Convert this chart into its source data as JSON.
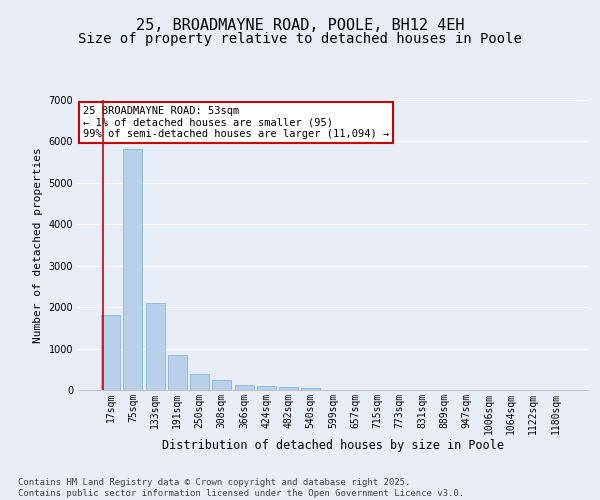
{
  "title": "25, BROADMAYNE ROAD, POOLE, BH12 4EH",
  "subtitle": "Size of property relative to detached houses in Poole",
  "xlabel": "Distribution of detached houses by size in Poole",
  "ylabel": "Number of detached properties",
  "categories": [
    "17sqm",
    "75sqm",
    "133sqm",
    "191sqm",
    "250sqm",
    "308sqm",
    "366sqm",
    "424sqm",
    "482sqm",
    "540sqm",
    "599sqm",
    "657sqm",
    "715sqm",
    "773sqm",
    "831sqm",
    "889sqm",
    "947sqm",
    "1006sqm",
    "1064sqm",
    "1122sqm",
    "1180sqm"
  ],
  "values": [
    1800,
    5820,
    2100,
    840,
    380,
    230,
    120,
    90,
    70,
    50,
    0,
    0,
    0,
    0,
    0,
    0,
    0,
    0,
    0,
    0,
    0
  ],
  "bar_color": "#b8d0ea",
  "bar_edge_color": "#7aafd4",
  "annotation_text": "25 BROADMAYNE ROAD: 53sqm\n← 1% of detached houses are smaller (95)\n99% of semi-detached houses are larger (11,094) →",
  "annotation_box_facecolor": "#ffffff",
  "annotation_border_color": "#cc0000",
  "red_line_color": "#cc0000",
  "ylim": [
    0,
    7000
  ],
  "yticks": [
    0,
    1000,
    2000,
    3000,
    4000,
    5000,
    6000,
    7000
  ],
  "background_color": "#e8eef8",
  "grid_color": "#ffffff",
  "footer_line1": "Contains HM Land Registry data © Crown copyright and database right 2025.",
  "footer_line2": "Contains public sector information licensed under the Open Government Licence v3.0.",
  "title_fontsize": 11,
  "subtitle_fontsize": 10,
  "axis_label_fontsize": 8.5,
  "tick_fontsize": 7,
  "annotation_fontsize": 7.5,
  "footer_fontsize": 6.5,
  "ylabel_fontsize": 8
}
